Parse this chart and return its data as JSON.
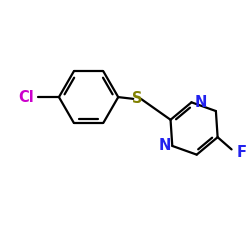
{
  "background_color": "#ffffff",
  "figsize": [
    2.5,
    2.5
  ],
  "dpi": 100,
  "bonds": {
    "color": "#000000",
    "linewidth": 1.6
  },
  "atoms": {
    "Cl": {
      "label": "Cl",
      "color": "#cc00cc",
      "fontsize": 10.5
    },
    "S": {
      "label": "S",
      "color": "#808000",
      "fontsize": 10.5
    },
    "N1": {
      "label": "N",
      "color": "#2222ee",
      "fontsize": 10.5
    },
    "N3": {
      "label": "N",
      "color": "#2222ee",
      "fontsize": 10.5
    },
    "F": {
      "label": "F",
      "color": "#2222ee",
      "fontsize": 10.5
    }
  },
  "xlim": [
    -3.8,
    3.2
  ],
  "ylim": [
    -2.8,
    2.2
  ]
}
